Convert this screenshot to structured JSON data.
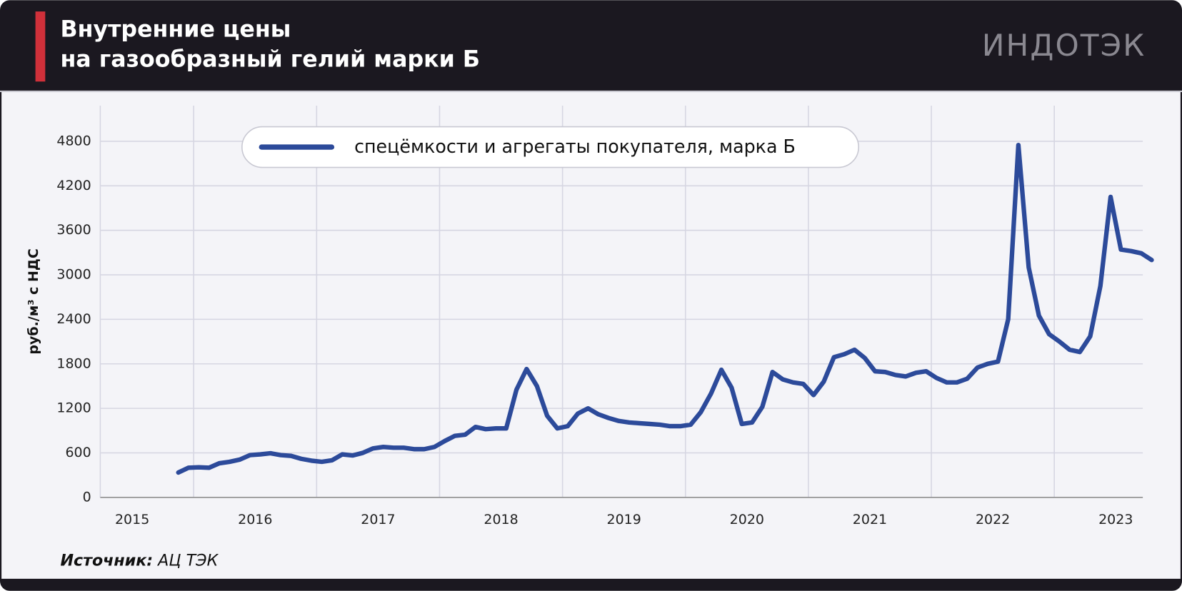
{
  "header": {
    "title_lines": [
      "Внутренние цены",
      "на газообразный гелий марки Б"
    ],
    "logo": "ИНДОТЭК"
  },
  "source": {
    "label": "Источник:",
    "text": "АЦ ТЭК"
  },
  "chart_data": {
    "type": "line",
    "y_label": "руб./м³ с НДС",
    "x": [
      2015.875,
      2015.958,
      2016.042,
      2016.125,
      2016.208,
      2016.292,
      2016.375,
      2016.458,
      2016.542,
      2016.625,
      2016.708,
      2016.792,
      2016.875,
      2016.958,
      2017.042,
      2017.125,
      2017.208,
      2017.292,
      2017.375,
      2017.458,
      2017.542,
      2017.625,
      2017.708,
      2017.792,
      2017.875,
      2017.958,
      2018.042,
      2018.125,
      2018.208,
      2018.292,
      2018.375,
      2018.458,
      2018.542,
      2018.625,
      2018.708,
      2018.792,
      2018.875,
      2018.958,
      2019.042,
      2019.125,
      2019.208,
      2019.292,
      2019.375,
      2019.458,
      2019.542,
      2019.625,
      2019.708,
      2019.792,
      2019.875,
      2019.958,
      2020.042,
      2020.125,
      2020.208,
      2020.292,
      2020.375,
      2020.458,
      2020.542,
      2020.625,
      2020.708,
      2020.792,
      2020.875,
      2020.958,
      2021.042,
      2021.125,
      2021.208,
      2021.292,
      2021.375,
      2021.458,
      2021.542,
      2021.625,
      2021.708,
      2021.792,
      2021.875,
      2021.958,
      2022.042,
      2022.125,
      2022.208,
      2022.292,
      2022.375,
      2022.458,
      2022.542,
      2022.625,
      2022.708,
      2022.792,
      2022.875,
      2022.958,
      2023.042,
      2023.125,
      2023.208,
      2023.292,
      2023.375,
      2023.458,
      2023.542,
      2023.625,
      2023.708,
      2023.792
    ],
    "series": [
      {
        "name": "спецёмкости и агрегаты покупателя, марка Б",
        "color": "#2c4a9a",
        "values": [
          335,
          400,
          406,
          400,
          460,
          480,
          510,
          570,
          580,
          595,
          570,
          560,
          520,
          495,
          480,
          500,
          580,
          565,
          600,
          660,
          680,
          670,
          670,
          650,
          650,
          680,
          760,
          830,
          845,
          950,
          920,
          930,
          930,
          1450,
          1730,
          1500,
          1100,
          930,
          960,
          1130,
          1200,
          1120,
          1070,
          1030,
          1010,
          1000,
          990,
          980,
          960,
          960,
          980,
          1150,
          1400,
          1720,
          1480,
          990,
          1010,
          1220,
          1690,
          1590,
          1550,
          1530,
          1380,
          1560,
          1890,
          1930,
          1990,
          1880,
          1700,
          1690,
          1650,
          1630,
          1680,
          1700,
          1610,
          1550,
          1550,
          1600,
          1750,
          1800,
          1830,
          2400,
          4750,
          3100,
          2450,
          2200,
          2100,
          1990,
          1960,
          2170,
          2850,
          4050,
          3340,
          3320,
          3290,
          3200
        ]
      }
    ],
    "xlim": [
      2015.24,
      2023.72
    ],
    "xticks": [
      {
        "value": 2015.5,
        "label": "2015"
      },
      {
        "value": 2016.5,
        "label": "2016"
      },
      {
        "value": 2017.5,
        "label": "2017"
      },
      {
        "value": 2018.5,
        "label": "2018"
      },
      {
        "value": 2019.5,
        "label": "2019"
      },
      {
        "value": 2020.5,
        "label": "2020"
      },
      {
        "value": 2021.5,
        "label": "2021"
      },
      {
        "value": 2022.5,
        "label": "2022"
      },
      {
        "value": 2023.5,
        "label": "2023"
      }
    ],
    "ylim": [
      0,
      5280
    ],
    "yticks": [
      0,
      600,
      1200,
      1800,
      2400,
      3000,
      3600,
      4200,
      4800
    ],
    "grid": true
  }
}
